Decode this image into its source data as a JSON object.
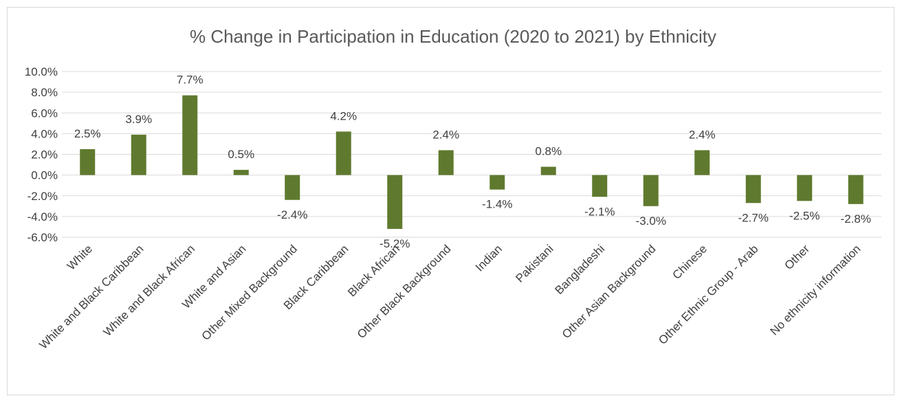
{
  "chart_data": {
    "type": "bar",
    "title": "% Change in Participation in Education (2020 to 2021) by Ethnicity",
    "xlabel": "",
    "ylabel": "",
    "ylim": [
      -0.06,
      0.1
    ],
    "ytick_step": 0.02,
    "grid": true,
    "legend": "none",
    "bar_color": "#5f7a2e",
    "categories": [
      "White",
      "White and Black Caribbean",
      "White and Black African",
      "White and Asian",
      "Other Mixed Background",
      "Black Caribbean",
      "Black African",
      "Other Black Background",
      "Indian",
      "Pakistani",
      "Bangladeshi",
      "Other Asian Background",
      "Chinese",
      "Other Ethnic Group - Arab",
      "Other",
      "No ethnicity information"
    ],
    "values": [
      0.025,
      0.039,
      0.077,
      0.005,
      -0.024,
      0.042,
      -0.052,
      0.024,
      -0.014,
      0.008,
      -0.021,
      -0.03,
      0.024,
      -0.027,
      -0.025,
      -0.028
    ],
    "data_labels": [
      "2.5%",
      "3.9%",
      "7.7%",
      "0.5%",
      "-2.4%",
      "4.2%",
      "-5.2%",
      "2.4%",
      "-1.4%",
      "0.8%",
      "-2.1%",
      "-3.0%",
      "2.4%",
      "-2.7%",
      "-2.5%",
      "-2.8%"
    ],
    "ytick_labels": [
      "10.0%",
      "8.0%",
      "6.0%",
      "4.0%",
      "2.0%",
      "0.0%",
      "-2.0%",
      "-4.0%",
      "-6.0%"
    ]
  }
}
